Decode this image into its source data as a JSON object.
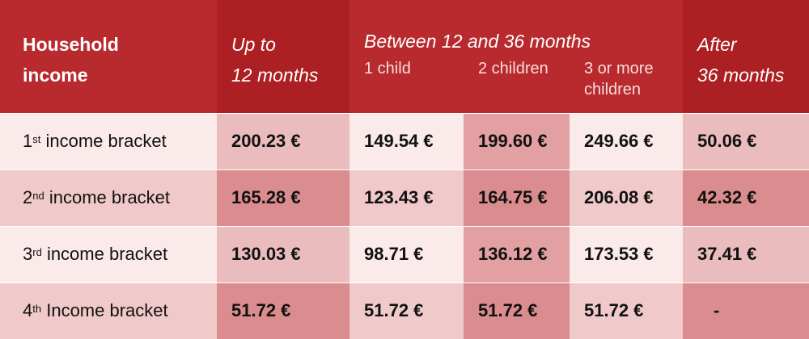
{
  "header": {
    "household_income_line1": "Household",
    "household_income_line2": "income",
    "up_to_line1": "Up to",
    "up_to_line2": "12 months",
    "between": "Between 12 and 36 months",
    "sub_one_child": "1 child",
    "sub_two_children": "2 children",
    "sub_three_more_line1": "3 or more",
    "sub_three_more_line2": "children",
    "after_line1": "After",
    "after_line2": "36 months"
  },
  "rows": [
    {
      "ordinal": "1",
      "suffix": "st",
      "label": "income bracket",
      "up_to_12": "200.23 €",
      "one_child": "149.54 €",
      "two_children": "199.60 €",
      "three_or_more": "249.66 €",
      "after_36": "50.06 €"
    },
    {
      "ordinal": "2",
      "suffix": "nd",
      "label": "income bracket",
      "up_to_12": "165.28 €",
      "one_child": "123.43 €",
      "two_children": "164.75 €",
      "three_or_more": "206.08 €",
      "after_36": "42.32 €"
    },
    {
      "ordinal": "3",
      "suffix": "rd",
      "label": "income bracket",
      "up_to_12": "130.03 €",
      "one_child": "98.71 €",
      "two_children": "136.12 €",
      "three_or_more": "173.53 €",
      "after_36": "37.41 €"
    },
    {
      "ordinal": "4",
      "suffix": "th",
      "label": "Income bracket",
      "up_to_12": "51.72 €",
      "one_child": "51.72 €",
      "two_children": "51.72 €",
      "three_or_more": "51.72 €",
      "after_36": "-"
    }
  ],
  "colors": {
    "header_red": "#b82a2d",
    "header_dark_red": "#ac1f22",
    "light_row": "#fbeaea",
    "mid_pink": "#ebbcbd",
    "dark_pink": "#db8c8e"
  }
}
